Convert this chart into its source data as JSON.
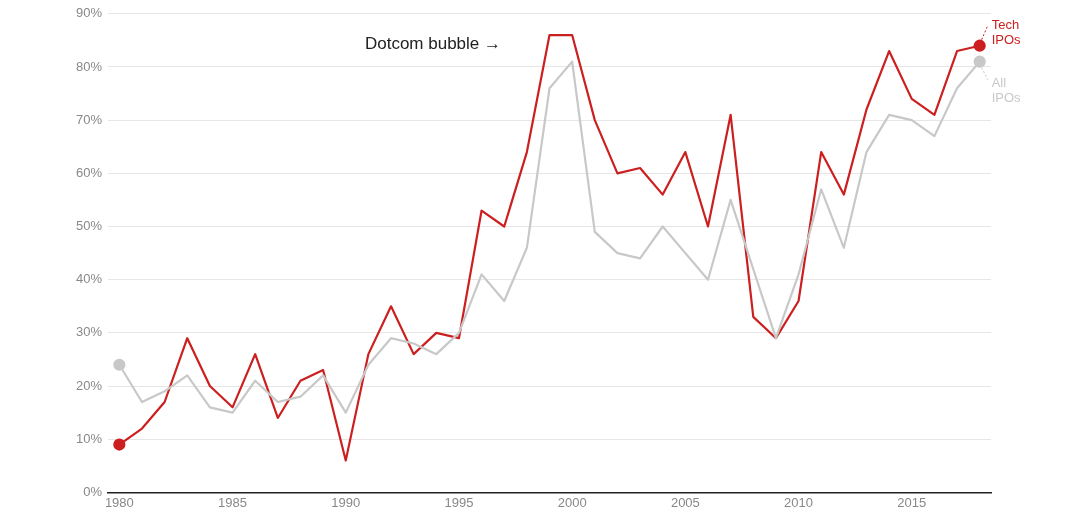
{
  "chart_data": {
    "type": "line",
    "x": [
      1980,
      1981,
      1982,
      1983,
      1984,
      1985,
      1986,
      1987,
      1988,
      1989,
      1990,
      1991,
      1992,
      1993,
      1994,
      1995,
      1996,
      1997,
      1998,
      1999,
      2000,
      2001,
      2002,
      2003,
      2004,
      2005,
      2006,
      2007,
      2008,
      2009,
      2010,
      2011,
      2012,
      2013,
      2014,
      2015,
      2016,
      2017,
      2018
    ],
    "series": [
      {
        "name": "All IPOs",
        "color": "#c8c8c8",
        "values": [
          24,
          17,
          19,
          22,
          16,
          15,
          21,
          17,
          18,
          22,
          15,
          24,
          29,
          28,
          26,
          30,
          41,
          36,
          46,
          76,
          81,
          49,
          45,
          44,
          50,
          45,
          40,
          55,
          42,
          29,
          41,
          57,
          46,
          64,
          71,
          70,
          67,
          76,
          81
        ]
      },
      {
        "name": "Tech IPOs",
        "color": "#cc1f1f",
        "values": [
          9,
          12,
          17,
          29,
          20,
          16,
          26,
          14,
          21,
          23,
          6,
          26,
          35,
          26,
          30,
          29,
          53,
          50,
          64,
          86,
          86,
          70,
          60,
          61,
          56,
          64,
          50,
          71,
          33,
          29,
          36,
          64,
          56,
          72,
          83,
          74,
          71,
          83,
          84
        ]
      }
    ],
    "xlim": [
      1979.5,
      2018.5
    ],
    "xticks": [
      1980,
      1985,
      1990,
      1995,
      2000,
      2005,
      2010,
      2015
    ],
    "ylim": [
      0,
      90
    ],
    "yticks": [
      {
        "value": 0,
        "label": "0%"
      },
      {
        "value": 10,
        "label": "10%"
      },
      {
        "value": 20,
        "label": "20%"
      },
      {
        "value": 30,
        "label": "30%"
      },
      {
        "value": 40,
        "label": "40%"
      },
      {
        "value": 50,
        "label": "50%"
      },
      {
        "value": 60,
        "label": "60%"
      },
      {
        "value": 70,
        "label": "70%"
      },
      {
        "value": 80,
        "label": "80%"
      },
      {
        "value": 90,
        "label": "90%"
      }
    ],
    "annotations": [
      "Dotcom bubble →"
    ],
    "grid": "y",
    "legend": "right",
    "line_style": "solid"
  }
}
